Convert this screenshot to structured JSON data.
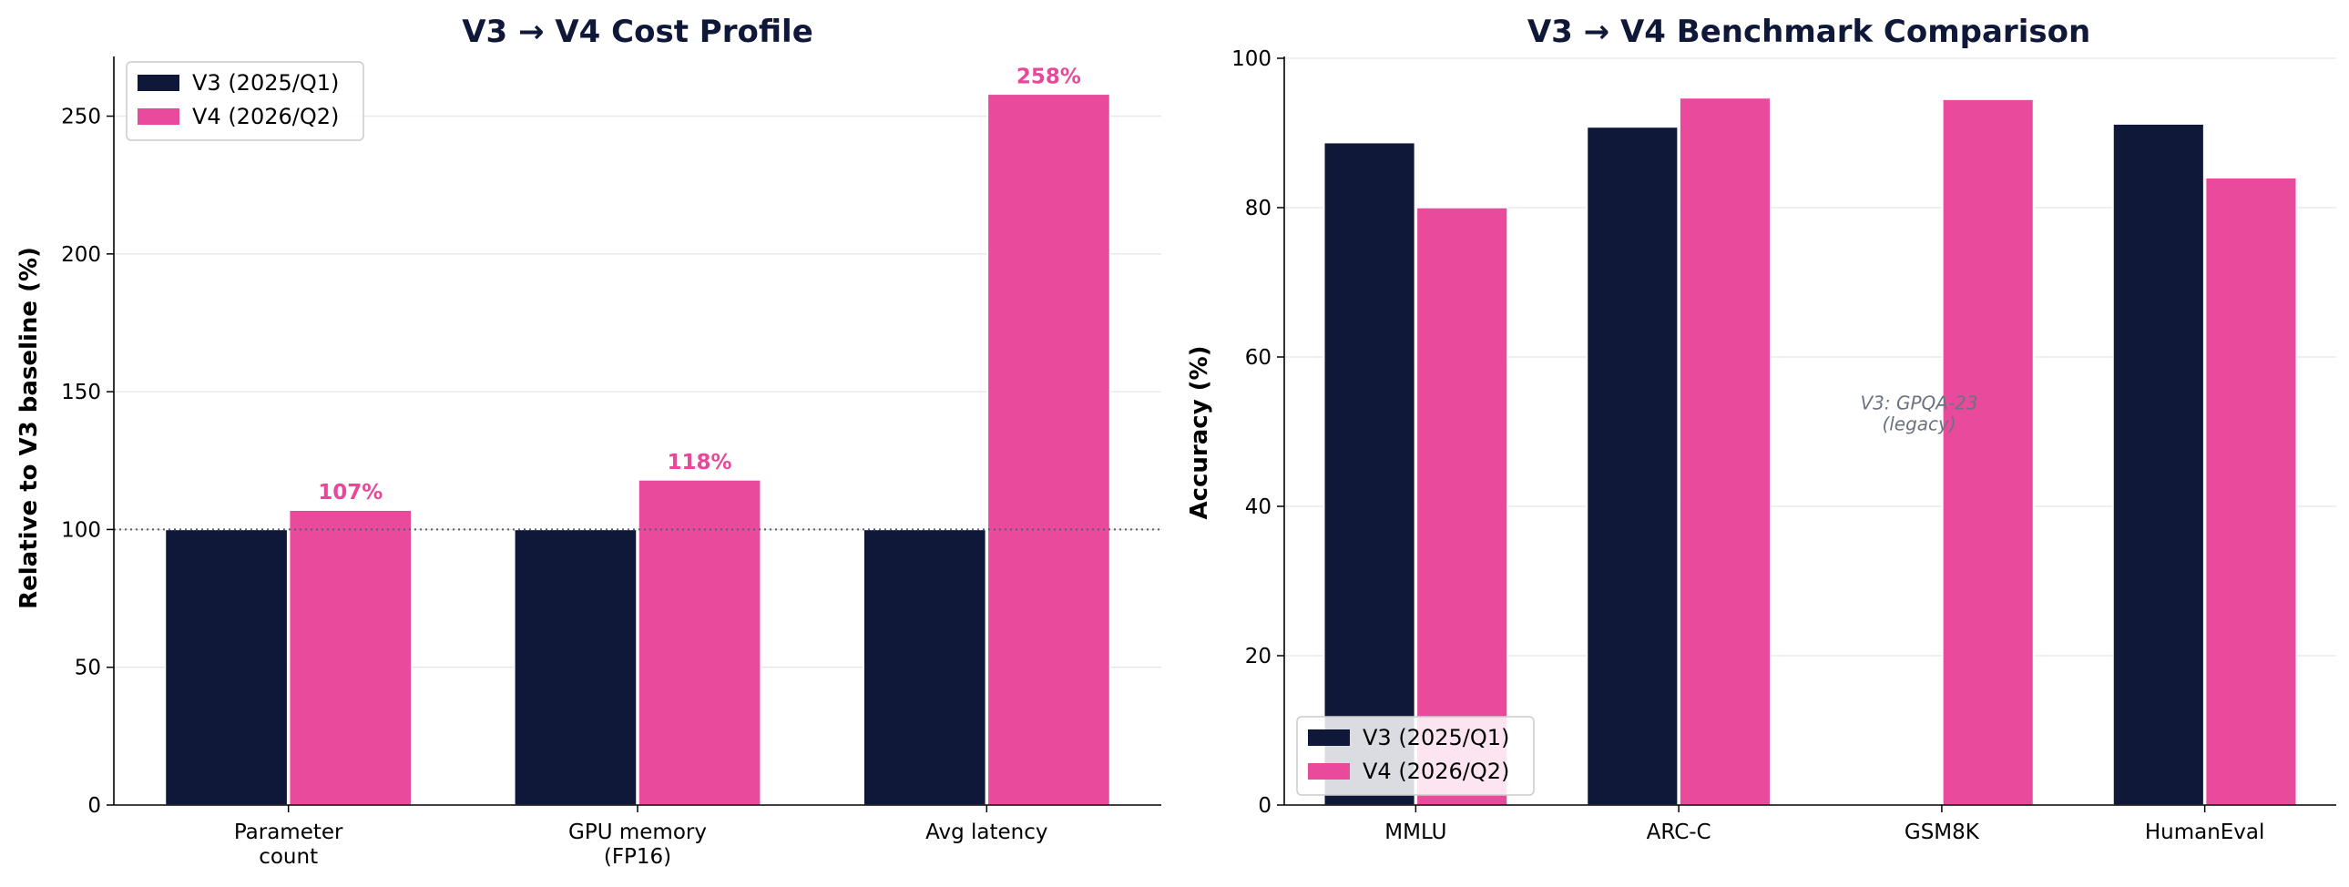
{
  "colors": {
    "v3": "#0f1838",
    "v4": "#ea4a9b",
    "grid": "#e6e6e6",
    "label": "#e8489a"
  },
  "chart_data": [
    {
      "type": "bar",
      "title": "V3 → V4 Cost Profile",
      "xlabel": "",
      "ylabel": "Relative to V3 baseline (%)",
      "ylim": [
        0,
        271
      ],
      "yticks": [
        0,
        50,
        100,
        150,
        200,
        250
      ],
      "categories": [
        [
          "Parameter",
          "count"
        ],
        [
          "GPU memory",
          "(FP16)"
        ],
        [
          "Avg latency"
        ]
      ],
      "series": [
        {
          "name": "V3 (2025/Q1)",
          "values": [
            100,
            100,
            100
          ]
        },
        {
          "name": "V4 (2026/Q2)",
          "values": [
            107,
            118,
            258
          ]
        }
      ],
      "data_labels": [
        "107%",
        "118%",
        "258%"
      ],
      "reference_line": 100,
      "grid": "y",
      "legend": "top-left"
    },
    {
      "type": "bar",
      "title": "V3 → V4 Benchmark Comparison",
      "xlabel": "",
      "ylabel": "Accuracy (%)",
      "ylim": [
        0,
        100
      ],
      "yticks": [
        0,
        20,
        40,
        60,
        80,
        100
      ],
      "categories": [
        "MMLU",
        "ARC-C",
        "GSM8K",
        "HumanEval"
      ],
      "series": [
        {
          "name": "V3 (2025/Q1)",
          "values": [
            88.7,
            90.8,
            null,
            91.2
          ]
        },
        {
          "name": "V4 (2026/Q2)",
          "values": [
            80.0,
            94.7,
            94.5,
            84.0
          ]
        }
      ],
      "annotation": [
        "V3: GPQA-23",
        "(legacy)"
      ],
      "grid": "y",
      "legend": "bottom-left"
    }
  ]
}
